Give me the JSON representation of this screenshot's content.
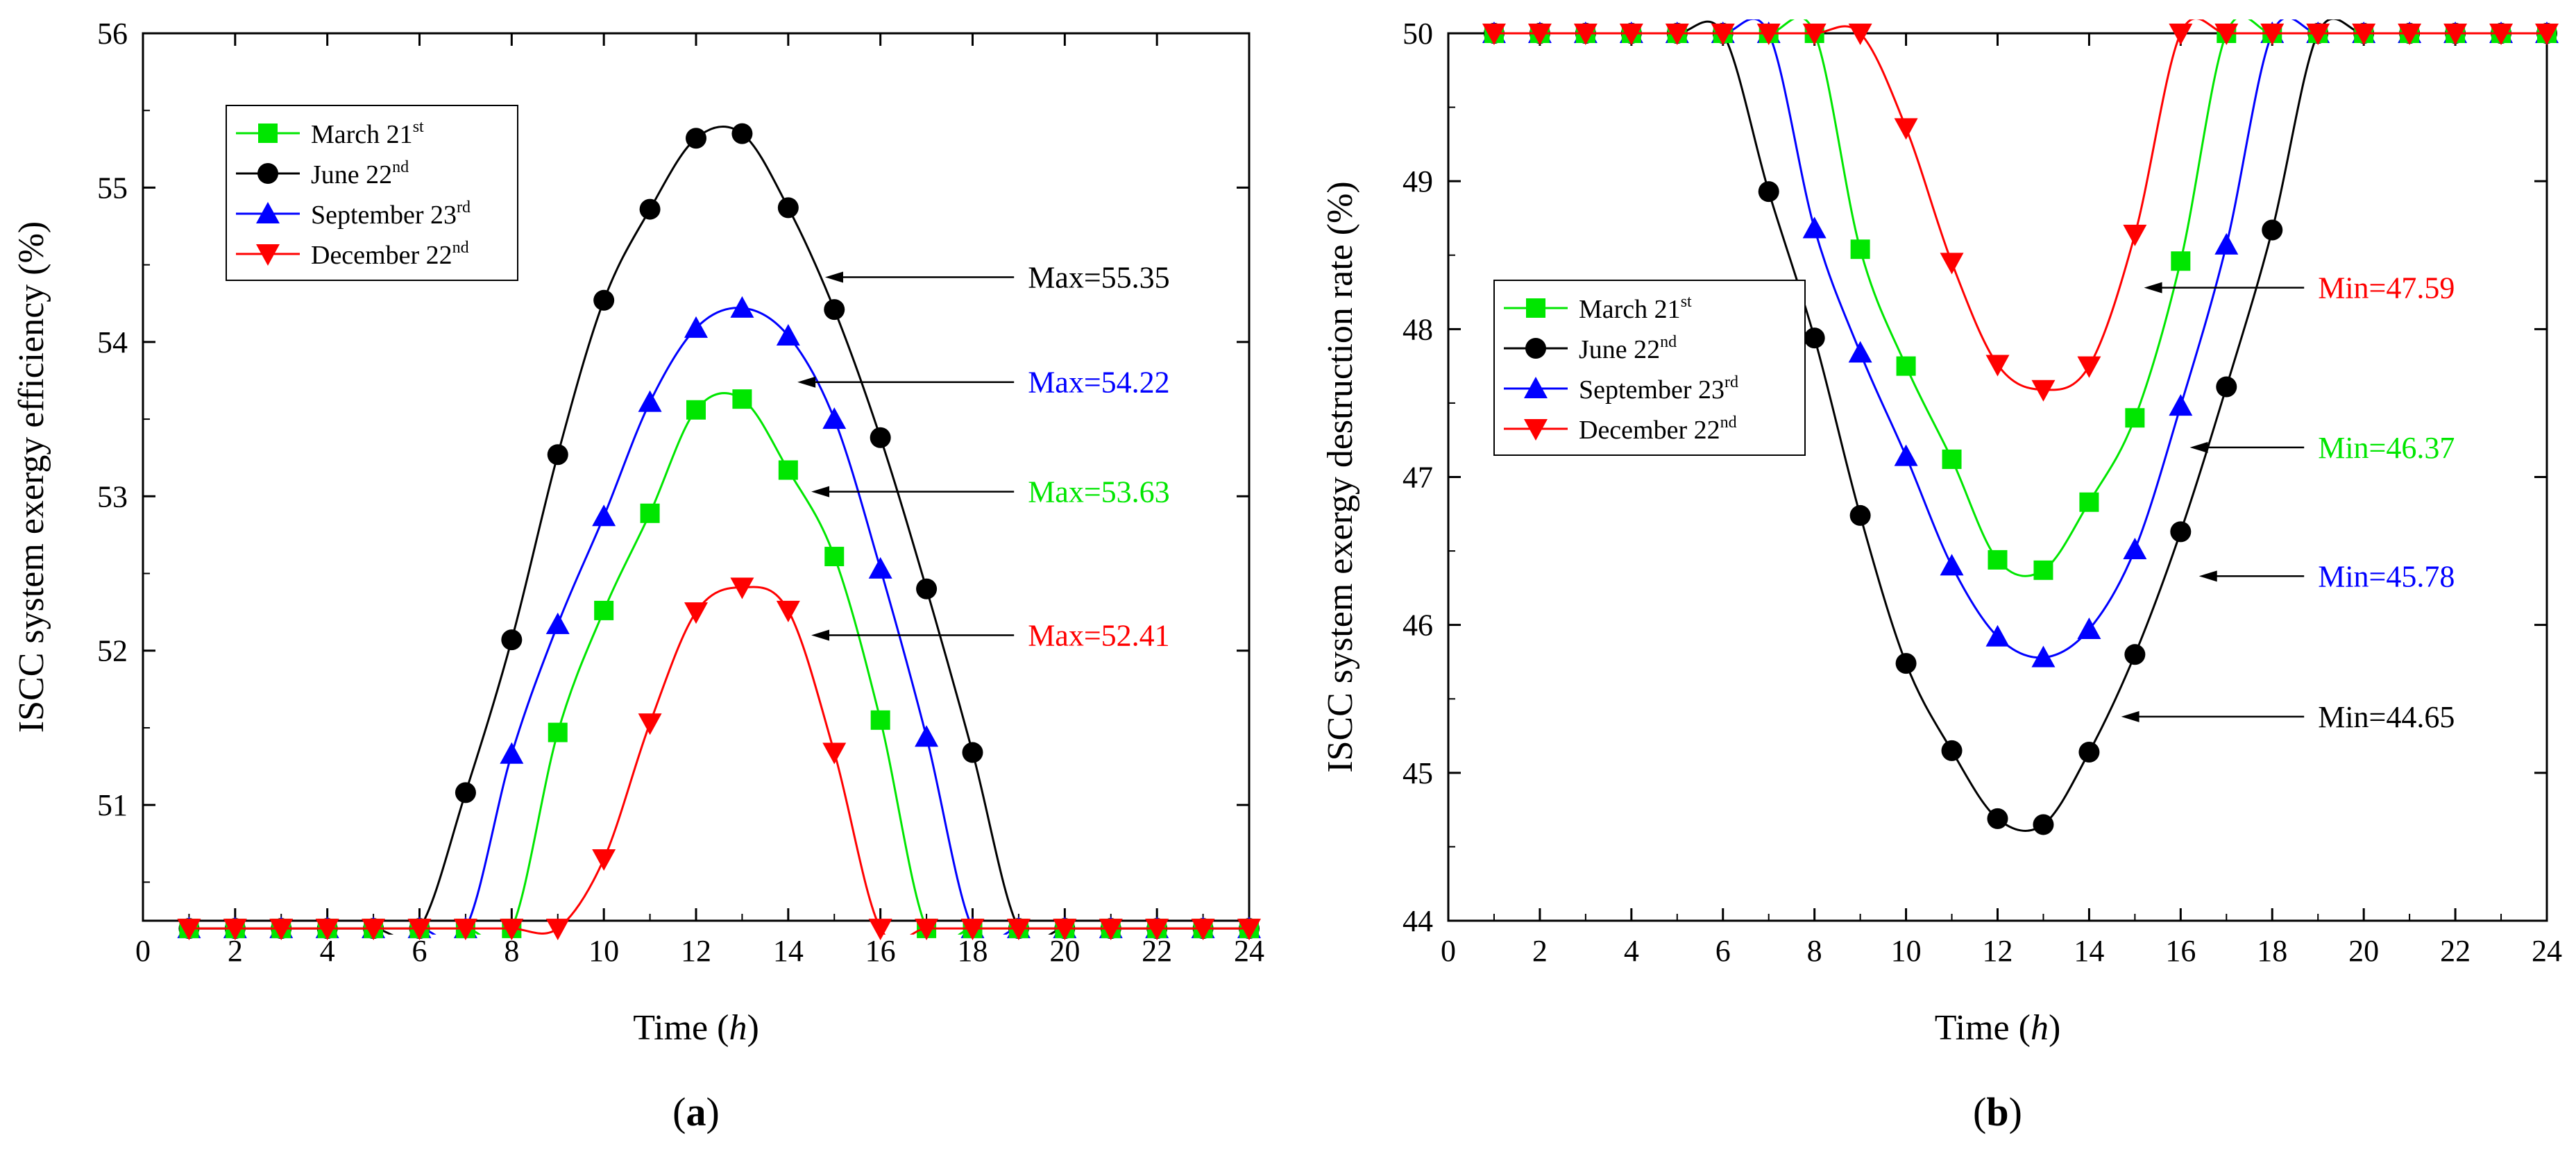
{
  "chart_data": [
    {
      "type": "line",
      "panel_label": "(a)",
      "title": "",
      "xlabel": "Time (h)",
      "ylabel": "ISCC system exergy efficiency (%)",
      "xlim": [
        0,
        24
      ],
      "ylim": [
        50.25,
        56
      ],
      "xticks": [
        0,
        2,
        4,
        6,
        8,
        10,
        12,
        14,
        16,
        18,
        20,
        22,
        24
      ],
      "yticks": [
        51,
        52,
        53,
        54,
        55,
        56
      ],
      "grid": false,
      "legend_position": "top-left",
      "x": [
        1,
        2,
        3,
        4,
        5,
        6,
        7,
        8,
        9,
        10,
        11,
        12,
        13,
        14,
        15,
        16,
        17,
        18,
        19,
        20,
        21,
        22,
        23,
        24
      ],
      "series": [
        {
          "name": "March 21",
          "sup": "st",
          "color": "#00e600",
          "marker": "square",
          "values": [
            50.2,
            50.2,
            50.2,
            50.2,
            50.2,
            50.2,
            50.2,
            50.2,
            51.47,
            52.26,
            52.89,
            53.56,
            53.63,
            53.17,
            52.61,
            51.55,
            50.2,
            50.2,
            50.2,
            50.2,
            50.2,
            50.2,
            50.2,
            50.2
          ]
        },
        {
          "name": "June 22",
          "sup": "nd",
          "color": "#000000",
          "marker": "circle",
          "values": [
            50.2,
            50.2,
            50.2,
            50.2,
            50.2,
            50.2,
            51.08,
            52.07,
            53.27,
            54.27,
            54.86,
            55.32,
            55.35,
            54.87,
            54.21,
            53.38,
            52.4,
            51.34,
            50.2,
            50.2,
            50.2,
            50.2,
            50.2,
            50.2
          ]
        },
        {
          "name": "September 23",
          "sup": "rd",
          "color": "#0000ff",
          "marker": "triangle-up",
          "values": [
            50.2,
            50.2,
            50.2,
            50.2,
            50.2,
            50.2,
            50.2,
            51.33,
            52.17,
            52.87,
            53.61,
            54.09,
            54.22,
            54.04,
            53.5,
            52.53,
            51.44,
            50.2,
            50.2,
            50.2,
            50.2,
            50.2,
            50.2,
            50.2
          ]
        },
        {
          "name": "December 22",
          "sup": "nd",
          "color": "#ff0000",
          "marker": "triangle-down",
          "values": [
            50.2,
            50.2,
            50.2,
            50.2,
            50.2,
            50.2,
            50.2,
            50.2,
            50.2,
            50.65,
            51.53,
            52.25,
            52.41,
            52.26,
            51.34,
            50.2,
            50.2,
            50.2,
            50.2,
            50.2,
            50.2,
            50.2,
            50.2,
            50.2
          ]
        }
      ],
      "annotations": [
        {
          "text": "Max=55.35",
          "color": "#000000",
          "x": 14.8,
          "y": 54.42,
          "label_x": 19.2
        },
        {
          "text": "Max=54.22",
          "color": "#0000ff",
          "x": 14.2,
          "y": 53.74,
          "label_x": 19.2
        },
        {
          "text": "Max=53.63",
          "color": "#00e600",
          "x": 14.5,
          "y": 53.03,
          "label_x": 19.2
        },
        {
          "text": "Max=52.41",
          "color": "#ff0000",
          "x": 14.5,
          "y": 52.1,
          "label_x": 19.2
        }
      ]
    },
    {
      "type": "line",
      "panel_label": "(b)",
      "title": "",
      "xlabel": "Time (h)",
      "ylabel": "ISCC system exergy destruction rate (%)",
      "xlim": [
        0,
        24
      ],
      "ylim": [
        44,
        50
      ],
      "xticks": [
        0,
        2,
        4,
        6,
        8,
        10,
        12,
        14,
        16,
        18,
        20,
        22,
        24
      ],
      "yticks": [
        44,
        45,
        46,
        47,
        48,
        49,
        50
      ],
      "grid": false,
      "legend_position": "middle-left",
      "x": [
        1,
        2,
        3,
        4,
        5,
        6,
        7,
        8,
        9,
        10,
        11,
        12,
        13,
        14,
        15,
        16,
        17,
        18,
        19,
        20,
        21,
        22,
        23,
        24
      ],
      "series": [
        {
          "name": "March 21",
          "sup": "st",
          "color": "#00e600",
          "marker": "square",
          "values": [
            50,
            50,
            50,
            50,
            50,
            50,
            50,
            50,
            48.54,
            47.75,
            47.12,
            46.44,
            46.37,
            46.83,
            47.4,
            48.46,
            50,
            50,
            50,
            50,
            50,
            50,
            50,
            50
          ]
        },
        {
          "name": "June 22",
          "sup": "nd",
          "color": "#000000",
          "marker": "circle",
          "values": [
            50,
            50,
            50,
            50,
            50,
            50,
            48.93,
            47.94,
            46.74,
            45.74,
            45.15,
            44.69,
            44.65,
            45.14,
            45.8,
            46.63,
            47.61,
            48.67,
            50,
            50,
            50,
            50,
            50,
            50
          ]
        },
        {
          "name": "September 23",
          "sup": "rd",
          "color": "#0000ff",
          "marker": "triangle-up",
          "values": [
            50,
            50,
            50,
            50,
            50,
            50,
            50,
            48.68,
            47.84,
            47.14,
            46.4,
            45.92,
            45.78,
            45.97,
            46.51,
            47.48,
            48.57,
            50,
            50,
            50,
            50,
            50,
            50,
            50
          ]
        },
        {
          "name": "December 22",
          "sup": "nd",
          "color": "#ff0000",
          "marker": "triangle-down",
          "values": [
            50,
            50,
            50,
            50,
            50,
            50,
            50,
            50,
            50,
            49.36,
            48.45,
            47.76,
            47.59,
            47.75,
            48.64,
            50,
            50,
            50,
            50,
            50,
            50,
            50,
            50,
            50
          ]
        }
      ],
      "annotations": [
        {
          "text": "Min=47.59",
          "color": "#ff0000",
          "x": 15.2,
          "y": 48.28,
          "label_x": 19.0
        },
        {
          "text": "Min=46.37",
          "color": "#00e600",
          "x": 16.2,
          "y": 47.2,
          "label_x": 19.0
        },
        {
          "text": "Min=45.78",
          "color": "#0000ff",
          "x": 16.4,
          "y": 46.33,
          "label_x": 19.0
        },
        {
          "text": "Min=44.65",
          "color": "#000000",
          "x": 14.7,
          "y": 45.38,
          "label_x": 19.0
        }
      ]
    }
  ]
}
